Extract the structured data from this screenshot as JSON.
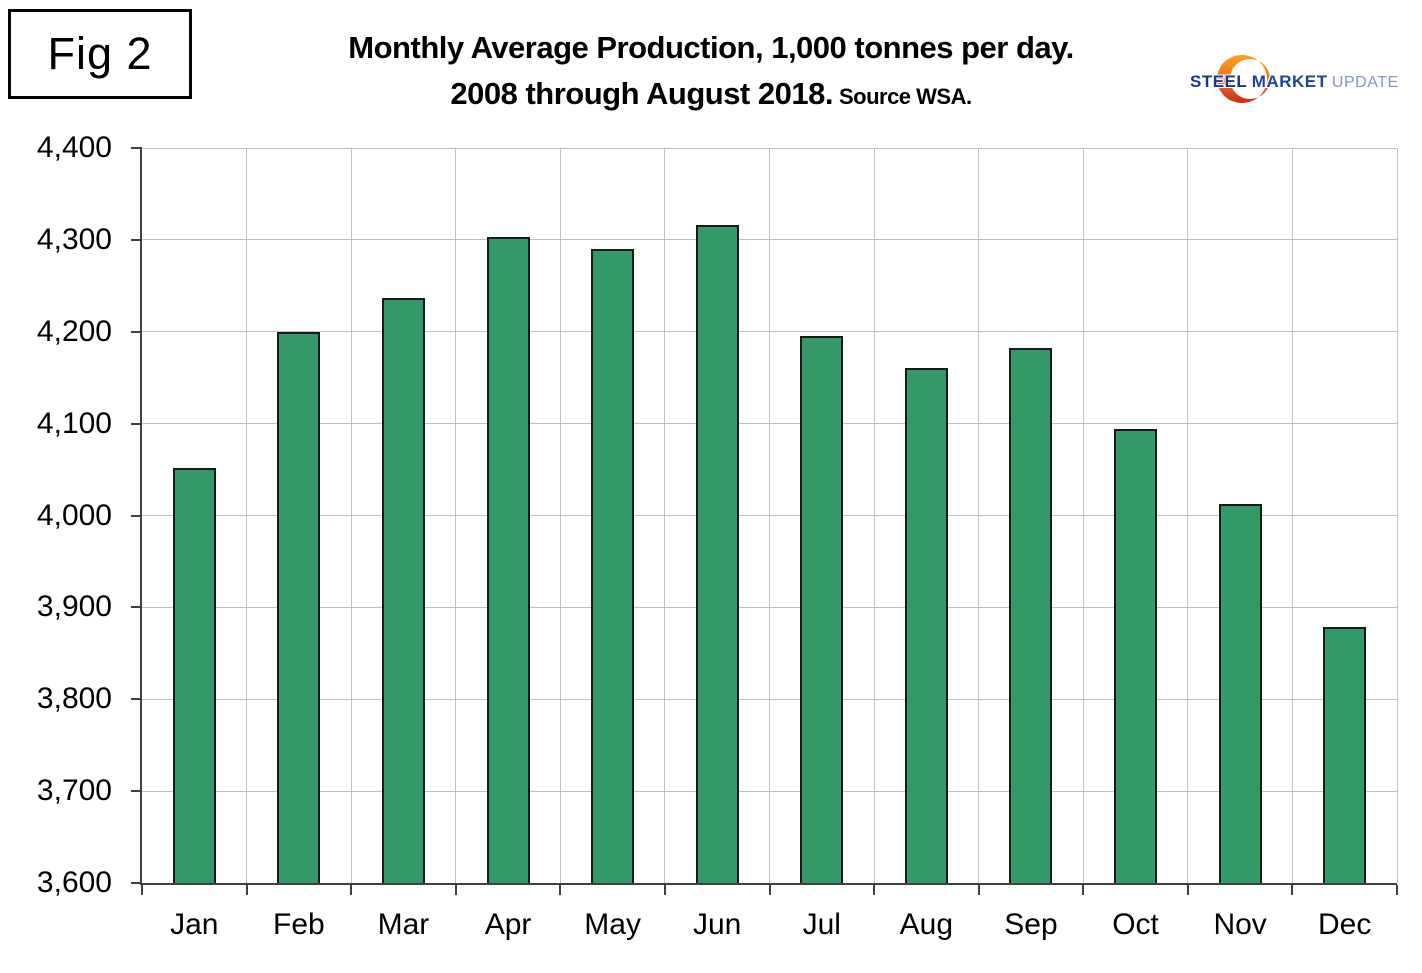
{
  "figure_label": "Fig 2",
  "title": {
    "line1": "Monthly Average Production, 1,000 tonnes per day.",
    "line2": "2008 through August 2018.",
    "source": "Source WSA."
  },
  "logo": {
    "word1": "STEEL",
    "word2": "MARKET",
    "word3": "UPDATE",
    "steel_color": "#16388E",
    "market_color": "#1C45A0",
    "update_color": "#8494C6",
    "crescent_top_color": "#F9A11B",
    "crescent_mid_color": "#F07122",
    "crescent_bottom_color": "#CE2B19"
  },
  "chart_data": {
    "type": "bar",
    "title": "Monthly Average Production, 1,000 tonnes per day. 2008 through August 2018.",
    "source": "Source WSA.",
    "xlabel": "",
    "ylabel": "",
    "categories": [
      "Jan",
      "Feb",
      "Mar",
      "Apr",
      "May",
      "Jun",
      "Jul",
      "Aug",
      "Sep",
      "Oct",
      "Nov",
      "Dec"
    ],
    "values": [
      4052,
      4200,
      4237,
      4303,
      4290,
      4316,
      4195,
      4161,
      4182,
      4094,
      4013,
      3879
    ],
    "ylim": [
      3600,
      4400
    ],
    "ytick_step": 100,
    "ytick_labels": [
      "3,600",
      "3,700",
      "3,800",
      "3,900",
      "4,000",
      "4,100",
      "4,200",
      "4,300",
      "4,400"
    ],
    "grid": "both",
    "legend": "none",
    "bar_color": "#339966",
    "bar_border_color": "#1a1a1a",
    "gridline_color": "#c0c0c0",
    "axis_color": "#404040"
  }
}
